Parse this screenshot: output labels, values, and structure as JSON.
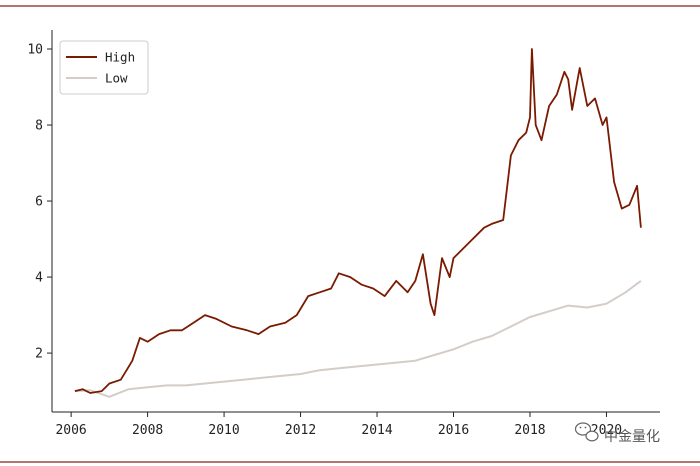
{
  "chart_data": {
    "type": "line",
    "title": "",
    "xlabel": "",
    "ylabel": "",
    "xlim": [
      2005.5,
      2021.4
    ],
    "ylim": [
      0.45,
      10.5
    ],
    "grid": false,
    "legend_position": "top-left",
    "x_ticks": [
      2006,
      2008,
      2010,
      2012,
      2014,
      2016,
      2018,
      2020
    ],
    "x_tick_labels": [
      "2006",
      "2008",
      "2010",
      "2012",
      "2014",
      "2016",
      "2018",
      "2020"
    ],
    "y_ticks": [
      2,
      4,
      6,
      8,
      10
    ],
    "y_tick_labels": [
      "2",
      "4",
      "6",
      "8",
      "10"
    ],
    "series": [
      {
        "name": "High",
        "color": "#7a1a00",
        "x": [
          2006.1,
          2006.3,
          2006.5,
          2006.8,
          2007.0,
          2007.3,
          2007.6,
          2007.8,
          2008.0,
          2008.3,
          2008.6,
          2008.9,
          2009.2,
          2009.5,
          2009.8,
          2010.2,
          2010.6,
          2010.9,
          2011.2,
          2011.6,
          2011.9,
          2012.2,
          2012.5,
          2012.8,
          2013.0,
          2013.3,
          2013.6,
          2013.9,
          2014.2,
          2014.5,
          2014.8,
          2015.0,
          2015.2,
          2015.4,
          2015.5,
          2015.7,
          2015.9,
          2016.0,
          2016.2,
          2016.5,
          2016.8,
          2017.0,
          2017.3,
          2017.5,
          2017.7,
          2017.9,
          2018.0,
          2018.05,
          2018.15,
          2018.3,
          2018.5,
          2018.7,
          2018.9,
          2019.0,
          2019.1,
          2019.3,
          2019.5,
          2019.7,
          2019.9,
          2020.0,
          2020.2,
          2020.4,
          2020.6,
          2020.8,
          2020.9
        ],
        "values": [
          1.0,
          1.05,
          0.95,
          1.0,
          1.2,
          1.3,
          1.8,
          2.4,
          2.3,
          2.5,
          2.6,
          2.6,
          2.8,
          3.0,
          2.9,
          2.7,
          2.6,
          2.5,
          2.7,
          2.8,
          3.0,
          3.5,
          3.6,
          3.7,
          4.1,
          4.0,
          3.8,
          3.7,
          3.5,
          3.9,
          3.6,
          3.9,
          4.6,
          3.3,
          3.0,
          4.5,
          4.0,
          4.5,
          4.7,
          5.0,
          5.3,
          5.4,
          5.5,
          7.2,
          7.6,
          7.8,
          8.2,
          10.0,
          8.0,
          7.6,
          8.5,
          8.8,
          9.4,
          9.2,
          8.4,
          9.5,
          8.5,
          8.7,
          8.0,
          8.2,
          6.5,
          5.8,
          5.9,
          6.4,
          5.3
        ],
        "style": "solid"
      },
      {
        "name": "Low",
        "color": "#d4cdc7",
        "x": [
          2006.1,
          2006.5,
          2007.0,
          2007.5,
          2008.0,
          2008.5,
          2009.0,
          2009.5,
          2010.0,
          2010.5,
          2011.0,
          2011.5,
          2012.0,
          2012.5,
          2013.0,
          2013.5,
          2014.0,
          2014.5,
          2015.0,
          2015.5,
          2016.0,
          2016.5,
          2017.0,
          2017.5,
          2018.0,
          2018.5,
          2019.0,
          2019.5,
          2020.0,
          2020.5,
          2020.9
        ],
        "values": [
          1.0,
          1.02,
          0.85,
          1.05,
          1.1,
          1.15,
          1.15,
          1.2,
          1.25,
          1.3,
          1.35,
          1.4,
          1.45,
          1.55,
          1.6,
          1.65,
          1.7,
          1.75,
          1.8,
          1.95,
          2.1,
          2.3,
          2.45,
          2.7,
          2.95,
          3.1,
          3.25,
          3.2,
          3.3,
          3.6,
          3.9
        ],
        "style": "solid"
      }
    ]
  },
  "legend": {
    "items": [
      {
        "label": "High",
        "color": "#7a1a00"
      },
      {
        "label": "Low",
        "color": "#d4cdc7"
      }
    ]
  },
  "watermark": {
    "text": "中金量化",
    "icon": "wechat-icon"
  }
}
